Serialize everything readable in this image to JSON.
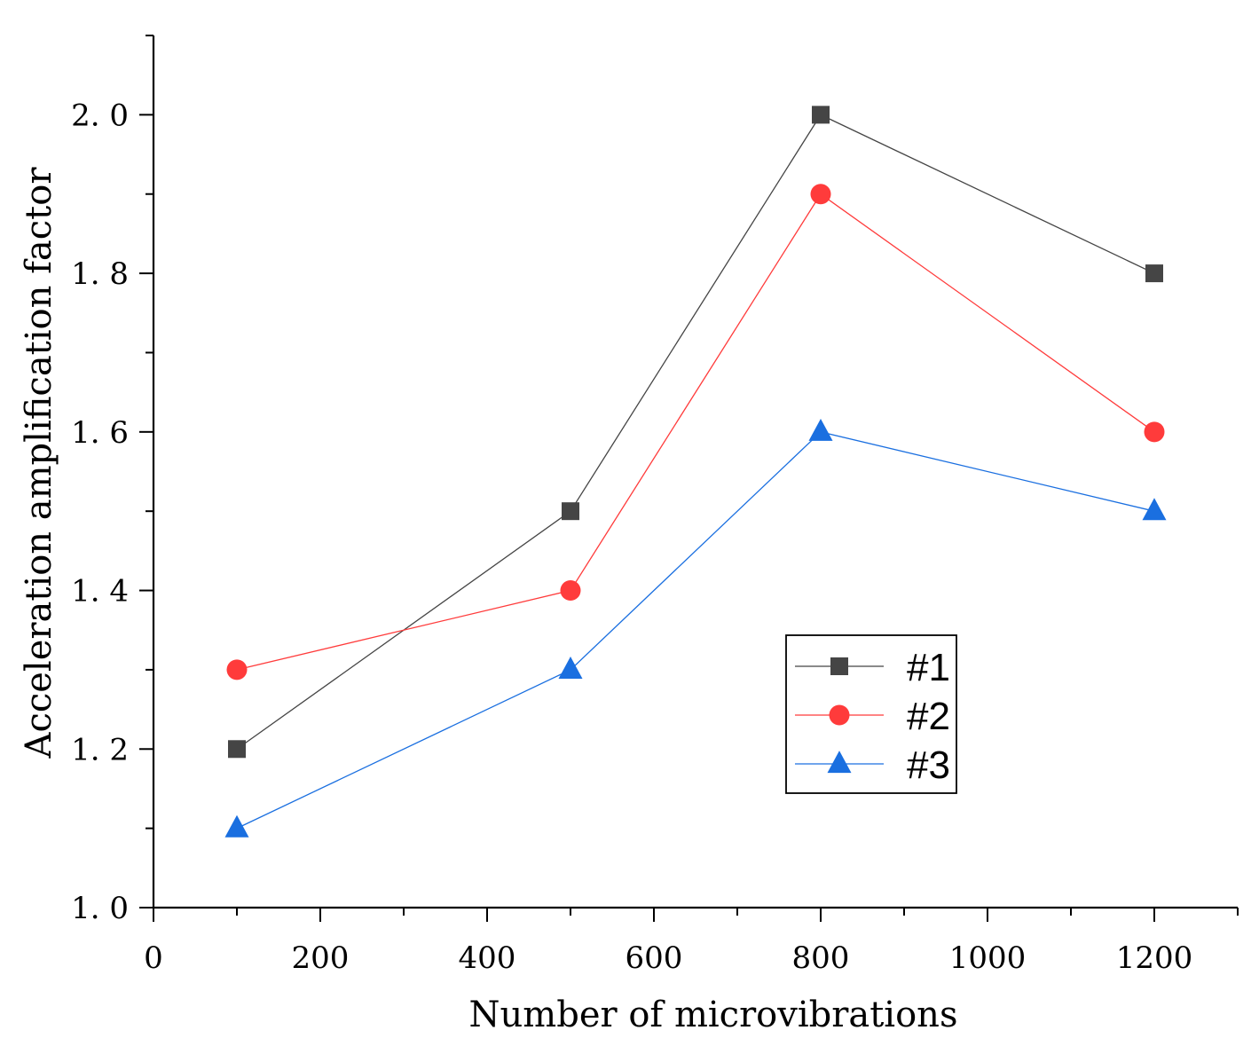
{
  "chart_data": {
    "type": "line",
    "title": "",
    "xlabel": "Number of microvibrations",
    "ylabel": "Acceleration amplification factor",
    "xlim": [
      0,
      1300
    ],
    "ylim": [
      1.0,
      2.1
    ],
    "x_major_ticks": [
      0,
      200,
      400,
      600,
      800,
      1000,
      1200
    ],
    "x_tick_labels": [
      "0",
      "200",
      "400",
      "600",
      "800",
      "1000",
      "1200"
    ],
    "x_minor_ticks": [
      100,
      300,
      500,
      700,
      900,
      1100,
      1300
    ],
    "y_major_ticks": [
      1.0,
      1.2,
      1.4,
      1.6,
      1.8,
      2.0
    ],
    "y_tick_labels": [
      "1. 0",
      "1. 2",
      "1. 4",
      "1. 6",
      "1. 8",
      "2. 0"
    ],
    "y_minor_ticks": [
      1.1,
      1.3,
      1.5,
      1.7,
      1.9,
      2.1
    ],
    "grid": false,
    "legend_position": "bottom-right",
    "x": [
      100,
      500,
      800,
      1200
    ],
    "series": [
      {
        "name": "#1",
        "marker": "square",
        "color": "#454545",
        "values": [
          1.2,
          1.5,
          2.0,
          1.8
        ]
      },
      {
        "name": "#2",
        "marker": "circle",
        "color": "#ff3b3b",
        "values": [
          1.3,
          1.4,
          1.9,
          1.6
        ]
      },
      {
        "name": "#3",
        "marker": "triangle",
        "color": "#1a6fe0",
        "values": [
          1.1,
          1.3,
          1.6,
          1.5
        ]
      }
    ]
  }
}
